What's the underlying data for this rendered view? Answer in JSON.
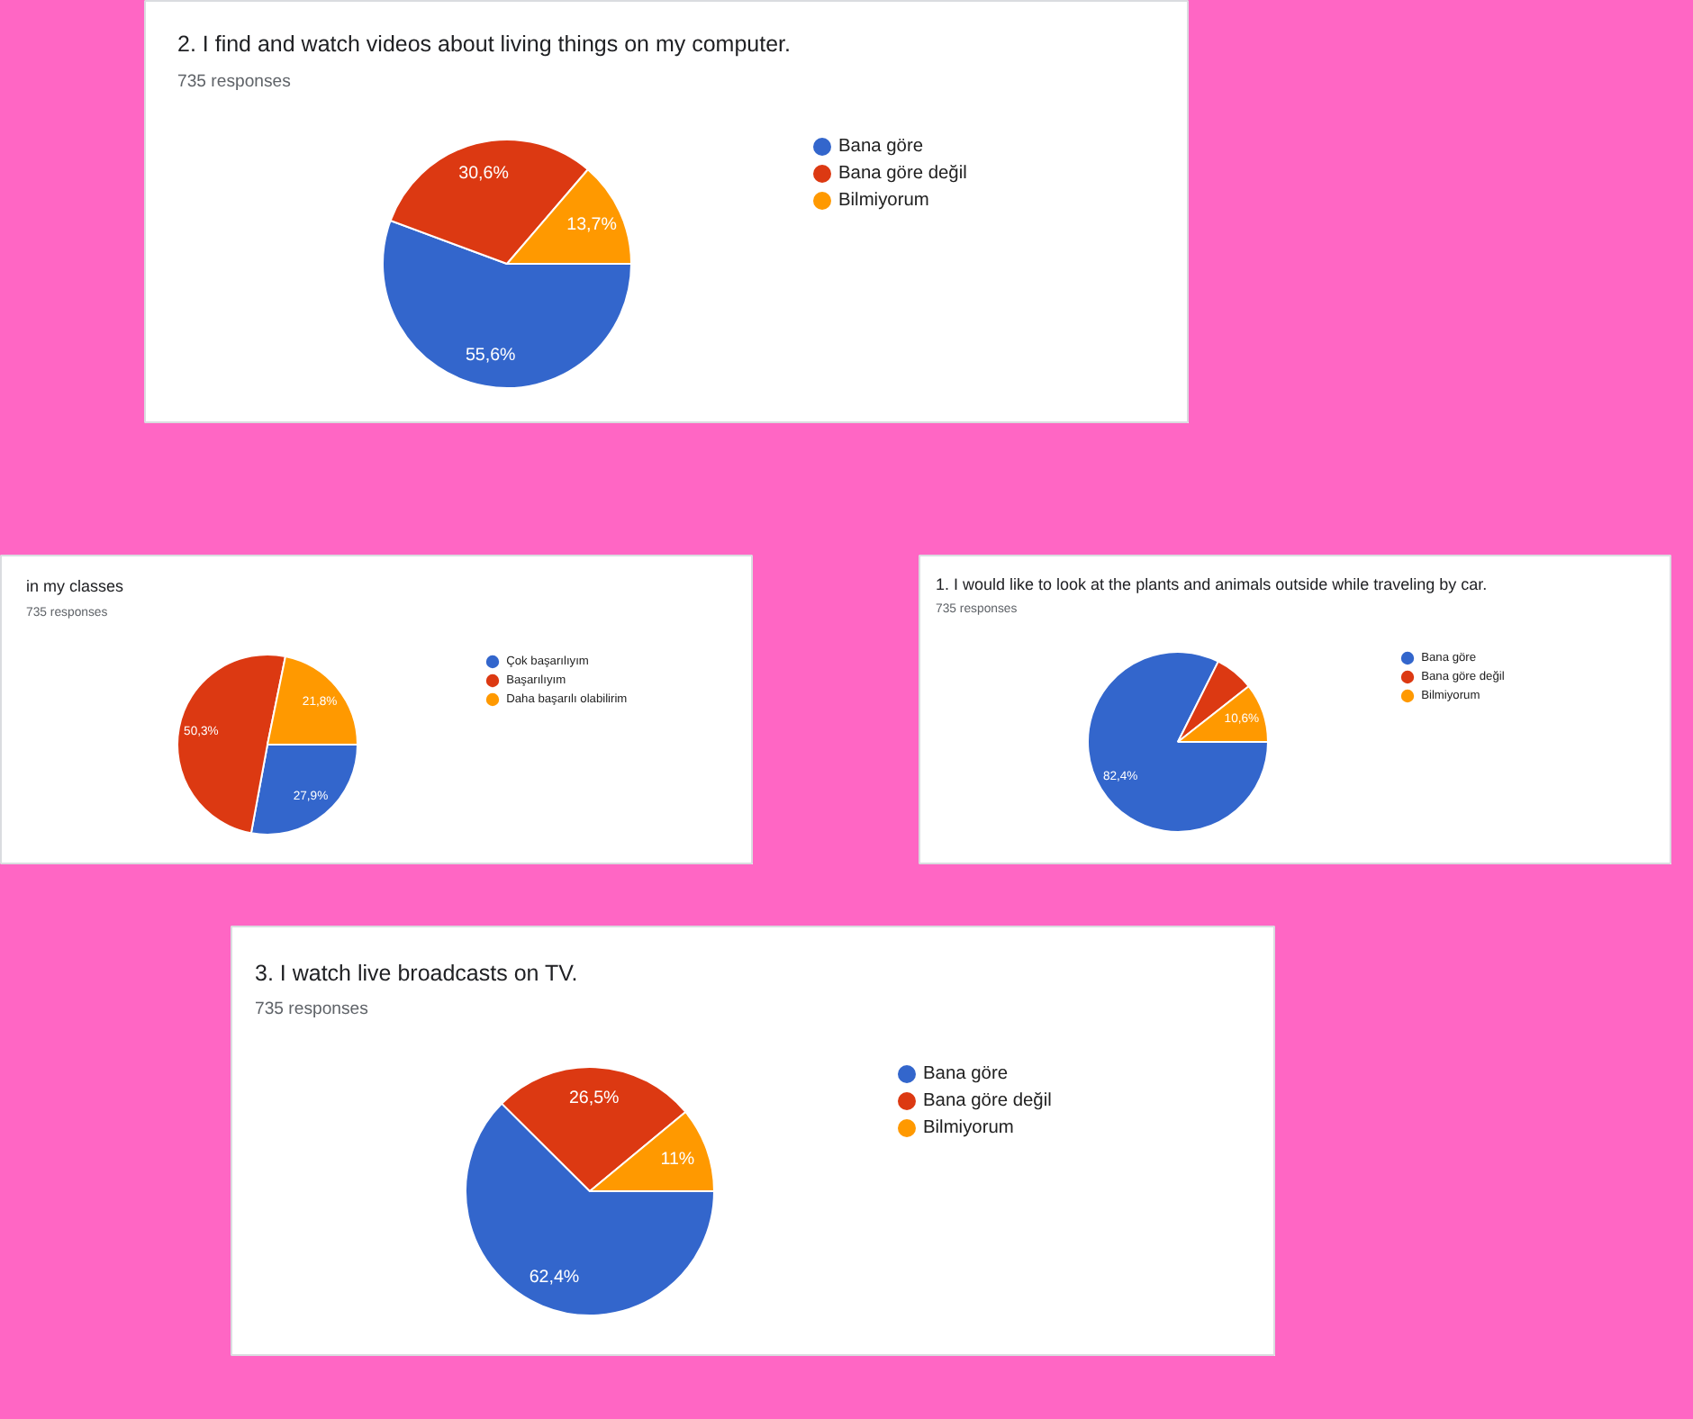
{
  "chart_data": [
    {
      "type": "pie",
      "title": "2. I find and watch videos about living things on my computer.",
      "subtitle": "735 responses",
      "categories": [
        "Bana göre",
        "Bana göre değil",
        "Bilmiyorum"
      ],
      "values": [
        55.6,
        30.6,
        13.7
      ],
      "colors": [
        "#3366cc",
        "#dc3912",
        "#ff9900"
      ],
      "value_labels": [
        "55,6%",
        "30,6%",
        "13,7%"
      ],
      "legend": "right"
    },
    {
      "type": "pie",
      "title": "in my classes",
      "subtitle": "735 responses",
      "categories": [
        "Çok başarılıyım",
        "Başarılıyım",
        "Daha başarılı olabilirim"
      ],
      "values": [
        27.9,
        50.3,
        21.8
      ],
      "colors": [
        "#3366cc",
        "#dc3912",
        "#ff9900"
      ],
      "value_labels": [
        "27,9%",
        "50,3%",
        "21,8%"
      ],
      "legend": "right"
    },
    {
      "type": "pie",
      "title": "1. I would like to look at the plants and animals outside while traveling by car.",
      "subtitle": "735 responses",
      "categories": [
        "Bana göre",
        "Bana göre değil",
        "Bilmiyorum"
      ],
      "values": [
        82.4,
        7.0,
        10.6
      ],
      "colors": [
        "#3366cc",
        "#dc3912",
        "#ff9900"
      ],
      "value_labels": [
        "82,4%",
        null,
        "10,6%"
      ],
      "legend": "right"
    },
    {
      "type": "pie",
      "title": "3. I watch live broadcasts on TV.",
      "subtitle": "735 responses",
      "categories": [
        "Bana göre",
        "Bana göre değil",
        "Bilmiyorum"
      ],
      "values": [
        62.4,
        26.5,
        11
      ],
      "colors": [
        "#3366cc",
        "#dc3912",
        "#ff9900"
      ],
      "value_labels": [
        "62,4%",
        "26,5%",
        "11%"
      ],
      "legend": "right"
    }
  ]
}
